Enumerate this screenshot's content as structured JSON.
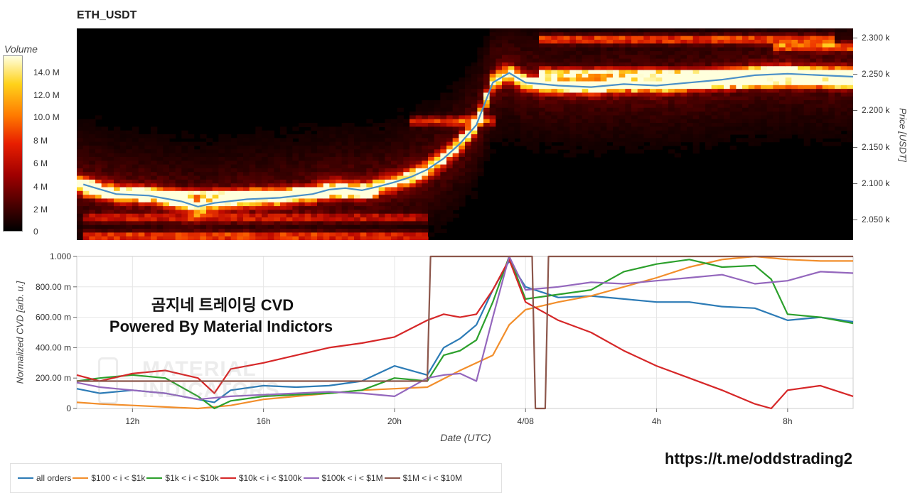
{
  "title": "ETH_USDT",
  "colorbar": {
    "title": "Volume",
    "ticks": [
      "14.0 M",
      "12.0 M",
      "10.0 M",
      "8 M",
      "6 M",
      "4 M",
      "2 M",
      "0"
    ]
  },
  "heatmap": {
    "ylabel": "Price [USDT]",
    "ticks": [
      "2.300 k",
      "2.250 k",
      "2.200 k",
      "2.150 k",
      "2.100 k",
      "2.050 k"
    ]
  },
  "overlay_text": {
    "line1": "곰지네 트레이딩 CVD",
    "line2": "Powered By Material Indictors"
  },
  "watermark": [
    "MATERIAL",
    "INDICATORS"
  ],
  "link": "https://t.me/oddstrading2",
  "colors": {
    "all_orders": "#2c7bb6",
    "s100_1k": "#f28e2b",
    "s1k_10k": "#2ca02c",
    "s10k_100k": "#d62728",
    "s100k_1m": "#9467bd",
    "s1m_10m": "#8c564b",
    "price_line": "#4a90c8"
  },
  "chart_data": [
    {
      "type": "heatmap",
      "title": "ETH_USDT",
      "ylabel": "Price [USDT]",
      "ylim": [
        2030,
        2315
      ],
      "colorbar_label": "Volume",
      "colorbar_range": [
        0,
        15000000
      ],
      "x_hours": [
        10.5,
        11.5,
        12.5,
        13.5,
        14,
        14.5,
        15.5,
        16.5,
        17.5,
        18,
        18.5,
        19,
        19.5,
        20,
        20.5,
        21,
        21.5,
        22,
        22.5,
        23,
        23.5,
        24,
        24.5,
        25,
        26,
        27,
        28,
        29,
        30,
        31,
        32,
        33,
        34
      ],
      "price": [
        2105,
        2092,
        2090,
        2082,
        2075,
        2080,
        2085,
        2087,
        2092,
        2098,
        2100,
        2097,
        2102,
        2108,
        2115,
        2125,
        2140,
        2160,
        2185,
        2242,
        2255,
        2242,
        2240,
        2238,
        2236,
        2240,
        2238,
        2242,
        2246,
        2252,
        2254,
        2252,
        2250
      ],
      "bands": [
        {
          "price": 2300,
          "x0": 24.4,
          "x1": 33.5,
          "level": 0.55
        },
        {
          "price": 2290,
          "x0": 31.5,
          "x1": 34.0,
          "level": 0.6
        },
        {
          "price": 2255,
          "x0": 24.4,
          "x1": 34.0,
          "level": 0.85
        },
        {
          "price": 2240,
          "x0": 24.4,
          "x1": 34.0,
          "level": 0.75
        },
        {
          "price": 2190,
          "x0": 20.5,
          "x1": 23.0,
          "level": 0.5
        },
        {
          "price": 2093,
          "x0": 10.5,
          "x1": 19.5,
          "level": 0.65
        },
        {
          "price": 2035,
          "x0": 10.5,
          "x1": 21.0,
          "level": 0.55
        },
        {
          "price": 2060,
          "x0": 10.5,
          "x1": 21.0,
          "level": 0.35
        }
      ]
    },
    {
      "type": "line",
      "ylabel": "Normalized CVD [arb. u.]",
      "xlabel": "Date (UTC)",
      "ylim": [
        0,
        1
      ],
      "xlim": [
        10.3,
        34.0
      ],
      "yticks": [
        0,
        0.2,
        0.4,
        0.6,
        0.8,
        1.0
      ],
      "ytick_labels": [
        "0",
        "200.00 m",
        "400.00 m",
        "600.00 m",
        "800.00 m",
        "1.000"
      ],
      "xticks": [
        12,
        16,
        20,
        24,
        28,
        32
      ],
      "xtick_labels": [
        "12h",
        "16h",
        "20h",
        "4/08",
        "4h",
        "8h"
      ],
      "legend_position": "bottom-left",
      "series": [
        {
          "name": "all orders",
          "key": "all_orders",
          "x": [
            10.3,
            11,
            12,
            13,
            14,
            14.5,
            15,
            16,
            17,
            18,
            19,
            20,
            21,
            21.5,
            22,
            22.5,
            23,
            23.5,
            24,
            25,
            26,
            27,
            28,
            29,
            30,
            31,
            32,
            33,
            34
          ],
          "y": [
            0.13,
            0.1,
            0.12,
            0.1,
            0.06,
            0.04,
            0.12,
            0.15,
            0.14,
            0.15,
            0.18,
            0.28,
            0.22,
            0.4,
            0.46,
            0.55,
            0.78,
            0.97,
            0.8,
            0.73,
            0.74,
            0.72,
            0.7,
            0.7,
            0.67,
            0.66,
            0.58,
            0.6,
            0.57
          ]
        },
        {
          "name": "$100 < i < $1k",
          "key": "s100_1k",
          "x": [
            10.3,
            11,
            12,
            13,
            14,
            15,
            16,
            17,
            18,
            19,
            20,
            21,
            22,
            23,
            23.5,
            24,
            25,
            26,
            27,
            28,
            29,
            30,
            31,
            32,
            33,
            34
          ],
          "y": [
            0.04,
            0.03,
            0.02,
            0.01,
            0.0,
            0.02,
            0.06,
            0.08,
            0.1,
            0.12,
            0.13,
            0.14,
            0.25,
            0.35,
            0.55,
            0.65,
            0.7,
            0.74,
            0.8,
            0.86,
            0.93,
            0.98,
            1.0,
            0.98,
            0.97,
            0.97
          ]
        },
        {
          "name": "$1k < i < $10k",
          "key": "s1k_10k",
          "x": [
            10.3,
            11,
            12,
            13,
            14,
            14.5,
            15,
            16,
            17,
            18,
            19,
            20,
            21,
            21.5,
            22,
            22.5,
            23,
            23.5,
            24,
            25,
            26,
            27,
            28,
            29,
            30,
            31,
            31.5,
            32,
            33,
            34
          ],
          "y": [
            0.18,
            0.2,
            0.22,
            0.2,
            0.08,
            0.0,
            0.05,
            0.08,
            0.09,
            0.1,
            0.12,
            0.2,
            0.18,
            0.35,
            0.38,
            0.45,
            0.7,
            1.0,
            0.72,
            0.75,
            0.78,
            0.9,
            0.95,
            0.98,
            0.93,
            0.94,
            0.85,
            0.62,
            0.6,
            0.56
          ]
        },
        {
          "name": "$10k < i < $100k",
          "key": "s10k_100k",
          "x": [
            10.3,
            11,
            12,
            13,
            14,
            14.5,
            15,
            16,
            17,
            18,
            19,
            20,
            21,
            21.5,
            22,
            22.5,
            23,
            23.5,
            24,
            25,
            26,
            27,
            28,
            29,
            30,
            31,
            31.5,
            32,
            33,
            34
          ],
          "y": [
            0.22,
            0.18,
            0.23,
            0.25,
            0.2,
            0.1,
            0.26,
            0.3,
            0.35,
            0.4,
            0.43,
            0.47,
            0.58,
            0.62,
            0.6,
            0.62,
            0.78,
            0.98,
            0.7,
            0.58,
            0.5,
            0.38,
            0.28,
            0.2,
            0.12,
            0.03,
            0.0,
            0.12,
            0.15,
            0.08
          ]
        },
        {
          "name": "$100k < i < $1M",
          "key": "s100k_1m",
          "x": [
            10.3,
            11,
            12,
            13,
            14,
            15,
            16,
            17,
            18,
            19,
            20,
            21,
            21.5,
            22,
            22.5,
            23,
            23.5,
            24,
            25,
            26,
            27,
            28,
            29,
            30,
            31,
            32,
            33,
            34
          ],
          "y": [
            0.17,
            0.14,
            0.12,
            0.1,
            0.06,
            0.08,
            0.09,
            0.1,
            0.11,
            0.1,
            0.08,
            0.2,
            0.22,
            0.23,
            0.18,
            0.6,
            1.0,
            0.78,
            0.8,
            0.83,
            0.82,
            0.84,
            0.86,
            0.88,
            0.82,
            0.84,
            0.9,
            0.89
          ]
        },
        {
          "name": "$1M < i < $10M",
          "key": "s1m_10m",
          "x": [
            10.3,
            21,
            21.1,
            24.2,
            24.3,
            24.6,
            24.7,
            34
          ],
          "y": [
            0.18,
            0.18,
            1.0,
            1.0,
            0.0,
            0.0,
            1.0,
            1.0
          ]
        }
      ]
    }
  ]
}
